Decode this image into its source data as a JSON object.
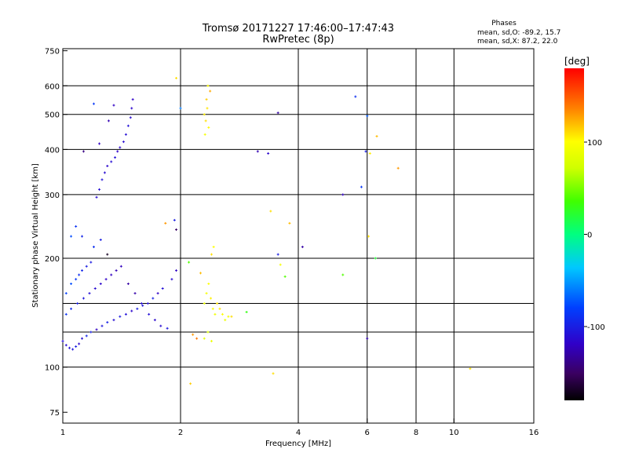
{
  "chart_data": {
    "type": "scatter",
    "title": "Tromsø 20171227 17:46:00–17:47:43",
    "subtitle": "RwPretec (8p)",
    "stats": {
      "heading": "Phases",
      "line1": "mean, sd,O: -89.2, 15.7",
      "line2": "mean, sd,X:  87.2, 22.0"
    },
    "xlabel": "Frequency [MHz]",
    "ylabel": "Stationary phase Virtual Height [km]",
    "xscale": "log",
    "yscale": "log",
    "xlim": [
      1,
      16
    ],
    "ylim": [
      70,
      760
    ],
    "x_ticks": [
      1,
      2,
      4,
      6,
      8,
      10,
      16
    ],
    "x_tick_labels": [
      "1",
      "2",
      "4",
      "6",
      "8",
      "10",
      "16"
    ],
    "x_gridlines": [
      2,
      4,
      6,
      8,
      10
    ],
    "y_ticks": [
      75,
      100,
      200,
      300,
      400,
      500,
      600,
      750
    ],
    "y_tick_labels": [
      "75",
      "100",
      "200",
      "300",
      "400",
      "500",
      "600",
      "750"
    ],
    "y_gridlines": [
      100,
      125,
      150,
      200,
      300,
      400,
      500,
      600
    ],
    "grid": true,
    "colorbar": {
      "label": "[deg]",
      "range": [
        -180,
        180
      ],
      "ticks": [
        100,
        0,
        -100
      ],
      "tick_labels": [
        "100",
        "0",
        "-100"
      ]
    },
    "series": [
      {
        "marker": "+",
        "points": [
          {
            "x": 1.0,
            "y": 118,
            "phase": -110
          },
          {
            "x": 1.02,
            "y": 115,
            "phase": -112
          },
          {
            "x": 1.04,
            "y": 113,
            "phase": -108
          },
          {
            "x": 1.06,
            "y": 112,
            "phase": -105
          },
          {
            "x": 1.08,
            "y": 114,
            "phase": -100
          },
          {
            "x": 1.1,
            "y": 116,
            "phase": -115
          },
          {
            "x": 1.12,
            "y": 120,
            "phase": -110
          },
          {
            "x": 1.15,
            "y": 122,
            "phase": -95
          },
          {
            "x": 1.18,
            "y": 125,
            "phase": -100
          },
          {
            "x": 1.22,
            "y": 127,
            "phase": -120
          },
          {
            "x": 1.26,
            "y": 130,
            "phase": -105
          },
          {
            "x": 1.3,
            "y": 133,
            "phase": -98
          },
          {
            "x": 1.35,
            "y": 135,
            "phase": -110
          },
          {
            "x": 1.4,
            "y": 138,
            "phase": -102
          },
          {
            "x": 1.45,
            "y": 140,
            "phase": -108
          },
          {
            "x": 1.5,
            "y": 143,
            "phase": -115
          },
          {
            "x": 1.55,
            "y": 145,
            "phase": -100
          },
          {
            "x": 1.6,
            "y": 148,
            "phase": -105
          },
          {
            "x": 1.65,
            "y": 150,
            "phase": -110
          },
          {
            "x": 1.7,
            "y": 155,
            "phase": -98
          },
          {
            "x": 1.75,
            "y": 160,
            "phase": -120
          },
          {
            "x": 1.8,
            "y": 165,
            "phase": -108
          },
          {
            "x": 1.02,
            "y": 160,
            "phase": -80
          },
          {
            "x": 1.05,
            "y": 170,
            "phase": -75
          },
          {
            "x": 1.08,
            "y": 175,
            "phase": -85
          },
          {
            "x": 1.1,
            "y": 180,
            "phase": -90
          },
          {
            "x": 1.12,
            "y": 185,
            "phase": -95
          },
          {
            "x": 1.15,
            "y": 190,
            "phase": -100
          },
          {
            "x": 1.18,
            "y": 195,
            "phase": -102
          },
          {
            "x": 1.02,
            "y": 140,
            "phase": -88
          },
          {
            "x": 1.05,
            "y": 145,
            "phase": -92
          },
          {
            "x": 1.09,
            "y": 150,
            "phase": -100
          },
          {
            "x": 1.13,
            "y": 155,
            "phase": -105
          },
          {
            "x": 1.17,
            "y": 160,
            "phase": -110
          },
          {
            "x": 1.21,
            "y": 165,
            "phase": -112
          },
          {
            "x": 1.25,
            "y": 170,
            "phase": -115
          },
          {
            "x": 1.29,
            "y": 175,
            "phase": -118
          },
          {
            "x": 1.33,
            "y": 180,
            "phase": -120
          },
          {
            "x": 1.37,
            "y": 185,
            "phase": -125
          },
          {
            "x": 1.41,
            "y": 190,
            "phase": -122
          },
          {
            "x": 1.47,
            "y": 170,
            "phase": -130
          },
          {
            "x": 1.53,
            "y": 160,
            "phase": -128
          },
          {
            "x": 1.59,
            "y": 150,
            "phase": -110
          },
          {
            "x": 1.66,
            "y": 140,
            "phase": -108
          },
          {
            "x": 1.72,
            "y": 135,
            "phase": -115
          },
          {
            "x": 1.78,
            "y": 130,
            "phase": -112
          },
          {
            "x": 1.85,
            "y": 128,
            "phase": -104
          },
          {
            "x": 1.9,
            "y": 175,
            "phase": -112
          },
          {
            "x": 1.95,
            "y": 185,
            "phase": -120
          },
          {
            "x": 1.22,
            "y": 295,
            "phase": -112
          },
          {
            "x": 1.24,
            "y": 310,
            "phase": -110
          },
          {
            "x": 1.26,
            "y": 330,
            "phase": -108
          },
          {
            "x": 1.28,
            "y": 345,
            "phase": -112
          },
          {
            "x": 1.3,
            "y": 360,
            "phase": -115
          },
          {
            "x": 1.33,
            "y": 370,
            "phase": -110
          },
          {
            "x": 1.36,
            "y": 380,
            "phase": -108
          },
          {
            "x": 1.38,
            "y": 395,
            "phase": -118
          },
          {
            "x": 1.4,
            "y": 405,
            "phase": -115
          },
          {
            "x": 1.43,
            "y": 420,
            "phase": -112
          },
          {
            "x": 1.45,
            "y": 440,
            "phase": -110
          },
          {
            "x": 1.47,
            "y": 465,
            "phase": -108
          },
          {
            "x": 1.49,
            "y": 490,
            "phase": -112
          },
          {
            "x": 1.5,
            "y": 520,
            "phase": -115
          },
          {
            "x": 1.51,
            "y": 550,
            "phase": -118
          },
          {
            "x": 1.2,
            "y": 535,
            "phase": -85
          },
          {
            "x": 1.35,
            "y": 530,
            "phase": -120
          },
          {
            "x": 1.31,
            "y": 480,
            "phase": -125
          },
          {
            "x": 1.13,
            "y": 395,
            "phase": -140
          },
          {
            "x": 1.24,
            "y": 415,
            "phase": -120
          },
          {
            "x": 1.05,
            "y": 230,
            "phase": -75
          },
          {
            "x": 1.08,
            "y": 245,
            "phase": -88
          },
          {
            "x": 1.12,
            "y": 230,
            "phase": -96
          },
          {
            "x": 1.2,
            "y": 215,
            "phase": -90
          },
          {
            "x": 1.25,
            "y": 225,
            "phase": -100
          },
          {
            "x": 1.3,
            "y": 205,
            "phase": -170
          },
          {
            "x": 1.83,
            "y": 250,
            "phase": 130
          },
          {
            "x": 1.95,
            "y": 240,
            "phase": -150
          },
          {
            "x": 1.93,
            "y": 255,
            "phase": -100
          },
          {
            "x": 2.3,
            "y": 500,
            "phase": 105
          },
          {
            "x": 2.32,
            "y": 480,
            "phase": 110
          },
          {
            "x": 2.34,
            "y": 520,
            "phase": 108
          },
          {
            "x": 2.36,
            "y": 460,
            "phase": 102
          },
          {
            "x": 2.33,
            "y": 550,
            "phase": 115
          },
          {
            "x": 2.35,
            "y": 600,
            "phase": 100
          },
          {
            "x": 2.31,
            "y": 440,
            "phase": 95
          },
          {
            "x": 2.38,
            "y": 580,
            "phase": 125
          },
          {
            "x": 2.3,
            "y": 150,
            "phase": 90
          },
          {
            "x": 2.33,
            "y": 160,
            "phase": 95
          },
          {
            "x": 2.36,
            "y": 170,
            "phase": 100
          },
          {
            "x": 2.39,
            "y": 155,
            "phase": 105
          },
          {
            "x": 2.42,
            "y": 145,
            "phase": 98
          },
          {
            "x": 2.45,
            "y": 140,
            "phase": 92
          },
          {
            "x": 2.48,
            "y": 150,
            "phase": 110
          },
          {
            "x": 2.52,
            "y": 145,
            "phase": 108
          },
          {
            "x": 2.56,
            "y": 140,
            "phase": 100
          },
          {
            "x": 2.6,
            "y": 135,
            "phase": 90
          },
          {
            "x": 2.65,
            "y": 138,
            "phase": 95
          },
          {
            "x": 2.7,
            "y": 138,
            "phase": 110
          },
          {
            "x": 2.35,
            "y": 125,
            "phase": 80
          },
          {
            "x": 2.3,
            "y": 120,
            "phase": 85
          },
          {
            "x": 2.4,
            "y": 118,
            "phase": 90
          },
          {
            "x": 2.2,
            "y": 120,
            "phase": 140
          },
          {
            "x": 2.15,
            "y": 123,
            "phase": 130
          },
          {
            "x": 2.25,
            "y": 182,
            "phase": 120
          },
          {
            "x": 2.4,
            "y": 205,
            "phase": 110
          },
          {
            "x": 2.43,
            "y": 215,
            "phase": 100
          },
          {
            "x": 2.1,
            "y": 195,
            "phase": 40
          },
          {
            "x": 2.95,
            "y": 142,
            "phase": 30
          },
          {
            "x": 1.95,
            "y": 630,
            "phase": 110
          },
          {
            "x": 2.0,
            "y": 520,
            "phase": -60
          },
          {
            "x": 2.12,
            "y": 90,
            "phase": 115
          },
          {
            "x": 3.15,
            "y": 395,
            "phase": -125
          },
          {
            "x": 3.35,
            "y": 390,
            "phase": -115
          },
          {
            "x": 3.55,
            "y": 505,
            "phase": -130
          },
          {
            "x": 3.4,
            "y": 270,
            "phase": 110
          },
          {
            "x": 3.8,
            "y": 250,
            "phase": 120
          },
          {
            "x": 3.55,
            "y": 205,
            "phase": -100
          },
          {
            "x": 3.6,
            "y": 192,
            "phase": 95
          },
          {
            "x": 3.7,
            "y": 178,
            "phase": 40
          },
          {
            "x": 4.1,
            "y": 215,
            "phase": -130
          },
          {
            "x": 3.45,
            "y": 96,
            "phase": 110
          },
          {
            "x": 5.2,
            "y": 300,
            "phase": -120
          },
          {
            "x": 5.2,
            "y": 180,
            "phase": 40
          },
          {
            "x": 5.6,
            "y": 560,
            "phase": -90
          },
          {
            "x": 5.8,
            "y": 315,
            "phase": -85
          },
          {
            "x": 5.95,
            "y": 395,
            "phase": -100
          },
          {
            "x": 6.0,
            "y": 120,
            "phase": -125
          },
          {
            "x": 6.0,
            "y": 495,
            "phase": -70
          },
          {
            "x": 6.05,
            "y": 230,
            "phase": 110
          },
          {
            "x": 6.1,
            "y": 390,
            "phase": 105
          },
          {
            "x": 6.3,
            "y": 200,
            "phase": 20
          },
          {
            "x": 6.35,
            "y": 435,
            "phase": 120
          },
          {
            "x": 7.2,
            "y": 355,
            "phase": 130
          },
          {
            "x": 11.0,
            "y": 99,
            "phase": 110
          }
        ]
      }
    ]
  }
}
